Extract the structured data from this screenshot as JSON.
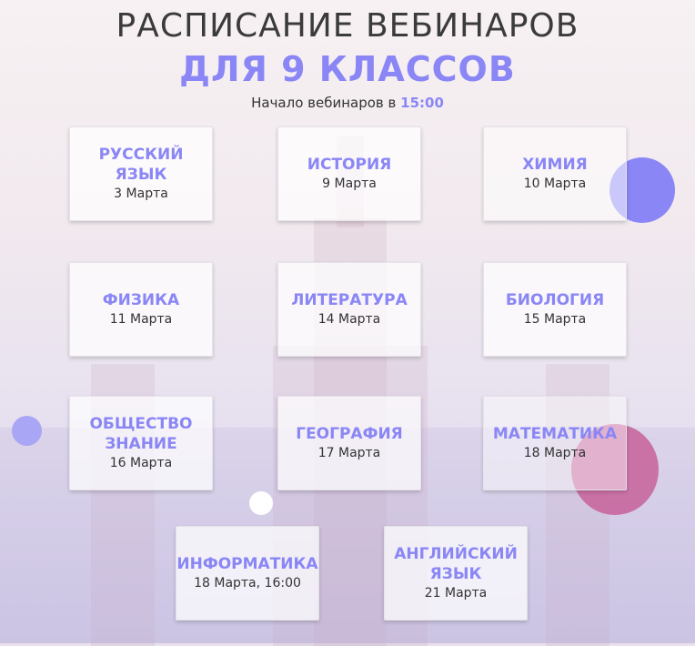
{
  "header": {
    "title": "РАСПИСАНИЕ ВЕБИНАРОВ",
    "subtitle": "ДЛЯ 9 КЛАССОВ",
    "start_prefix": "Начало вебинаров в",
    "start_time": "15:00"
  },
  "cards": [
    {
      "subject": "РУССКИЙ ЯЗЫК",
      "date": "3 Марта"
    },
    {
      "subject": "ИСТОРИЯ",
      "date": "9 Марта"
    },
    {
      "subject": "ХИМИЯ",
      "date": "10 Марта"
    },
    {
      "subject": "ФИЗИКА",
      "date": "11 Марта"
    },
    {
      "subject": "ЛИТЕРАТУРА",
      "date": "14 Марта"
    },
    {
      "subject": "БИОЛОГИЯ",
      "date": "15 Марта"
    },
    {
      "subject": "ОБЩЕСТВО ЗНАНИЕ",
      "date": "16 Марта"
    },
    {
      "subject": "ГЕОГРАФИЯ",
      "date": "17 Марта"
    },
    {
      "subject": "МАТЕМАТИКА",
      "date": "18 Марта"
    },
    {
      "subject": "ИНФОРМАТИКА",
      "date": "18 Марта, 16:00"
    },
    {
      "subject": "АНГЛИЙСКИЙ ЯЗЫК",
      "date": "21 Марта"
    }
  ],
  "colors": {
    "accent": "#8a86f5",
    "pink": "#c8679e",
    "text": "#333333"
  }
}
